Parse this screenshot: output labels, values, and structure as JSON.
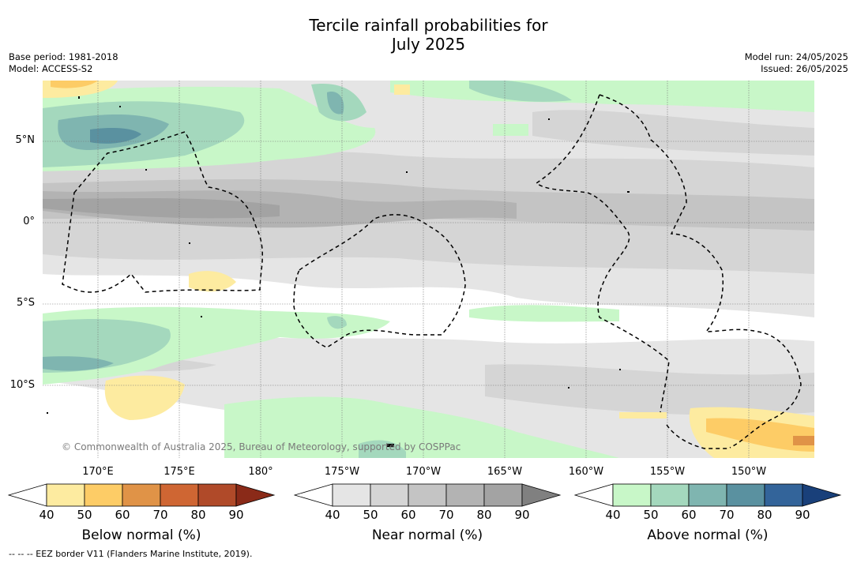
{
  "title_line1": "Tercile rainfall probabilities for",
  "title_line2": "July 2025",
  "base_period": "Base period: 1981-2018",
  "model": "Model: ACCESS-S2",
  "model_run": "Model run: 24/05/2025",
  "issued": "Issued: 26/05/2025",
  "lat_labels": [
    "5°N",
    "0°",
    "5°S",
    "10°S"
  ],
  "lon_labels": [
    "170°E",
    "175°E",
    "180°",
    "175°W",
    "170°W",
    "165°W",
    "160°W",
    "155°W",
    "150°W"
  ],
  "copyright": "© Commonwealth of Australia 2025, Bureau of Meteorology, supported by COSPPac",
  "footer": "--  --  -- EEZ border V11 (Flanders Marine Institute, 2019).",
  "colorbars": [
    {
      "title": "Below normal (%)",
      "ticks": [
        "40",
        "50",
        "60",
        "70",
        "80",
        "90"
      ],
      "colors": [
        "#ffffff",
        "#fdeba0",
        "#fdcc66",
        "#e09347",
        "#cf6633",
        "#b04a29",
        "#8a2a18"
      ]
    },
    {
      "title": "Near normal (%)",
      "ticks": [
        "40",
        "50",
        "60",
        "70",
        "80",
        "90"
      ],
      "colors": [
        "#ffffff",
        "#e5e5e5",
        "#d5d5d5",
        "#c4c4c4",
        "#b3b3b3",
        "#a3a3a3",
        "#808080"
      ]
    },
    {
      "title": "Above normal (%)",
      "ticks": [
        "40",
        "50",
        "60",
        "70",
        "80",
        "90"
      ],
      "colors": [
        "#ffffff",
        "#c8f7c8",
        "#a4d8bd",
        "#7fb5b0",
        "#5a91a0",
        "#33649a",
        "#19407a"
      ]
    }
  ]
}
